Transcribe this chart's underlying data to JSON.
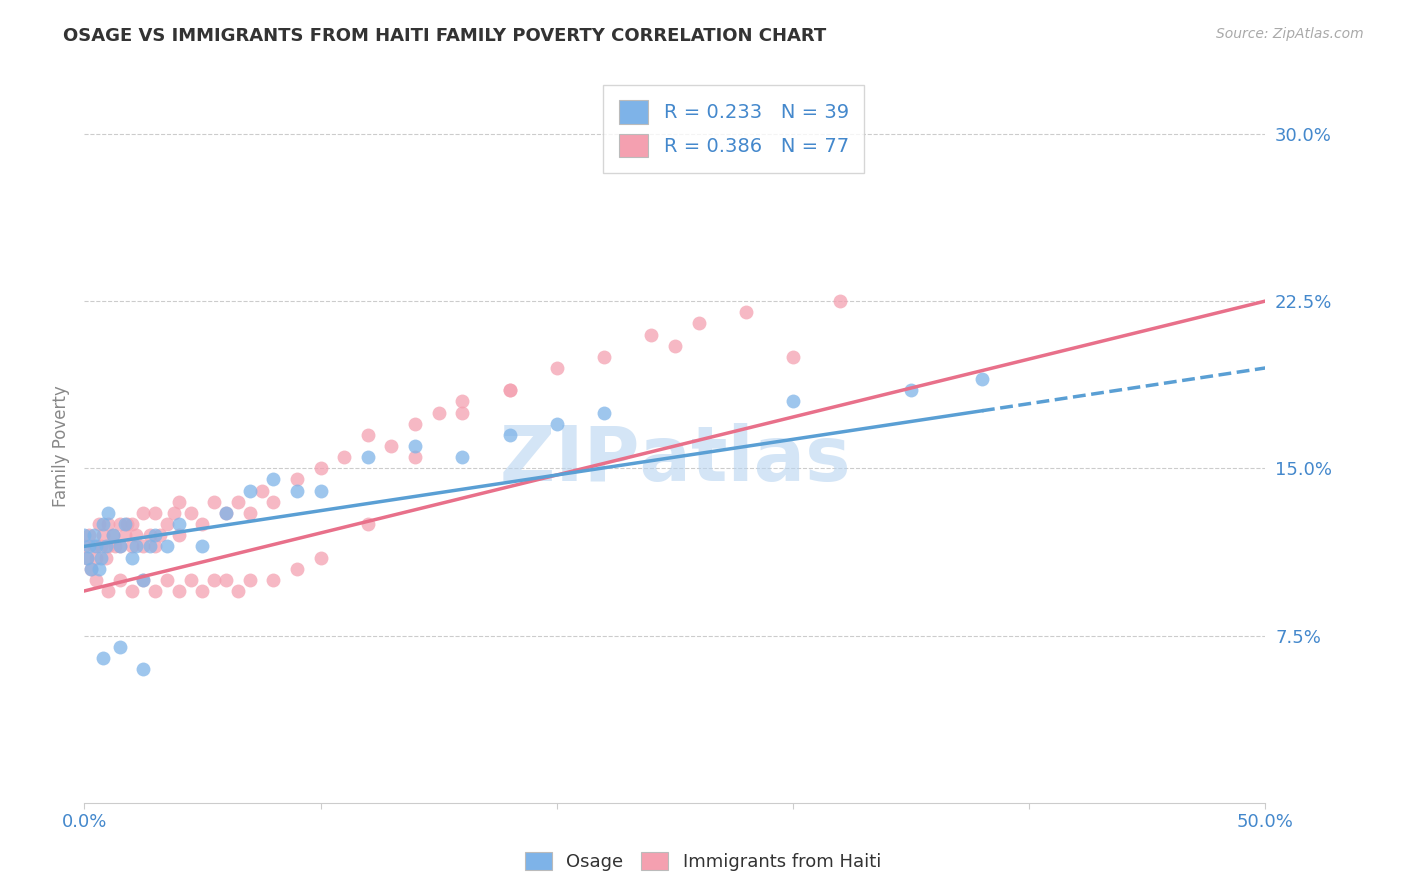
{
  "title": "OSAGE VS IMMIGRANTS FROM HAITI FAMILY POVERTY CORRELATION CHART",
  "source": "Source: ZipAtlas.com",
  "ylabel": "Family Poverty",
  "xlim": [
    0.0,
    0.5
  ],
  "ylim": [
    0.0,
    0.32
  ],
  "xtick_positions": [
    0.0,
    0.1,
    0.2,
    0.3,
    0.4,
    0.5
  ],
  "xtick_labels": [
    "0.0%",
    "",
    "",
    "",
    "",
    "50.0%"
  ],
  "ytick_labels": [
    "7.5%",
    "15.0%",
    "22.5%",
    "30.0%"
  ],
  "ytick_positions": [
    0.075,
    0.15,
    0.225,
    0.3
  ],
  "R_osage": 0.233,
  "N_osage": 39,
  "R_haiti": 0.386,
  "N_haiti": 77,
  "osage_color": "#7eb3e8",
  "haiti_color": "#f4a0b0",
  "osage_line_color": "#5a9fd4",
  "haiti_line_color": "#e8708a",
  "legend_label_osage": "Osage",
  "legend_label_haiti": "Immigrants from Haiti",
  "watermark": "ZIPAtlas",
  "background_color": "#ffffff",
  "grid_color": "#cccccc",
  "title_color": "#333333",
  "axis_label_color": "#888888",
  "tick_color": "#4488cc",
  "osage_line_x_solid_end": 0.38,
  "osage_line_x_start": 0.0,
  "osage_line_x_end": 0.5,
  "haiti_line_x_start": 0.0,
  "haiti_line_x_end": 0.5,
  "osage_line_y_at_0": 0.115,
  "osage_line_y_at_50": 0.195,
  "haiti_line_y_at_0": 0.095,
  "haiti_line_y_at_50": 0.225,
  "scatter_size": 100,
  "osage_x": [
    0.0,
    0.001,
    0.002,
    0.003,
    0.004,
    0.005,
    0.006,
    0.007,
    0.008,
    0.009,
    0.01,
    0.012,
    0.015,
    0.017,
    0.02,
    0.022,
    0.025,
    0.028,
    0.03,
    0.035,
    0.04,
    0.05,
    0.06,
    0.07,
    0.08,
    0.09,
    0.1,
    0.12,
    0.14,
    0.16,
    0.18,
    0.2,
    0.22,
    0.3,
    0.35,
    0.38,
    0.008,
    0.015,
    0.025
  ],
  "osage_y": [
    0.12,
    0.11,
    0.115,
    0.105,
    0.12,
    0.115,
    0.105,
    0.11,
    0.125,
    0.115,
    0.13,
    0.12,
    0.115,
    0.125,
    0.11,
    0.115,
    0.1,
    0.115,
    0.12,
    0.115,
    0.125,
    0.115,
    0.13,
    0.14,
    0.145,
    0.14,
    0.14,
    0.155,
    0.16,
    0.155,
    0.165,
    0.17,
    0.175,
    0.18,
    0.185,
    0.19,
    0.065,
    0.07,
    0.06
  ],
  "haiti_x": [
    0.0,
    0.001,
    0.002,
    0.003,
    0.004,
    0.005,
    0.006,
    0.007,
    0.008,
    0.009,
    0.01,
    0.01,
    0.012,
    0.013,
    0.015,
    0.015,
    0.017,
    0.018,
    0.02,
    0.02,
    0.022,
    0.025,
    0.025,
    0.028,
    0.03,
    0.03,
    0.032,
    0.035,
    0.038,
    0.04,
    0.04,
    0.045,
    0.05,
    0.055,
    0.06,
    0.065,
    0.07,
    0.075,
    0.08,
    0.09,
    0.1,
    0.11,
    0.12,
    0.13,
    0.14,
    0.15,
    0.16,
    0.18,
    0.2,
    0.22,
    0.24,
    0.26,
    0.28,
    0.32,
    0.005,
    0.01,
    0.015,
    0.02,
    0.025,
    0.03,
    0.035,
    0.04,
    0.045,
    0.05,
    0.055,
    0.06,
    0.065,
    0.07,
    0.08,
    0.09,
    0.1,
    0.12,
    0.14,
    0.16,
    0.18,
    0.25,
    0.3
  ],
  "haiti_y": [
    0.115,
    0.11,
    0.12,
    0.105,
    0.115,
    0.11,
    0.125,
    0.115,
    0.12,
    0.11,
    0.125,
    0.115,
    0.12,
    0.115,
    0.125,
    0.115,
    0.12,
    0.125,
    0.115,
    0.125,
    0.12,
    0.115,
    0.13,
    0.12,
    0.115,
    0.13,
    0.12,
    0.125,
    0.13,
    0.12,
    0.135,
    0.13,
    0.125,
    0.135,
    0.13,
    0.135,
    0.13,
    0.14,
    0.135,
    0.145,
    0.15,
    0.155,
    0.165,
    0.16,
    0.17,
    0.175,
    0.18,
    0.185,
    0.195,
    0.2,
    0.21,
    0.215,
    0.22,
    0.225,
    0.1,
    0.095,
    0.1,
    0.095,
    0.1,
    0.095,
    0.1,
    0.095,
    0.1,
    0.095,
    0.1,
    0.1,
    0.095,
    0.1,
    0.1,
    0.105,
    0.11,
    0.125,
    0.155,
    0.175,
    0.185,
    0.205,
    0.2
  ]
}
